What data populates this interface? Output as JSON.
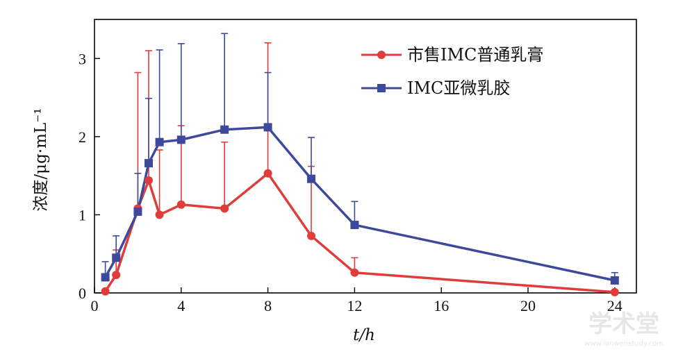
{
  "chart_data": {
    "type": "line",
    "title": "",
    "xlabel": "t/h",
    "ylabel": "浓度/μg·mL⁻¹",
    "xlim": [
      0,
      25
    ],
    "ylim": [
      0,
      3.5
    ],
    "x_ticks": [
      0,
      4,
      8,
      12,
      16,
      20,
      24
    ],
    "y_ticks": [
      0,
      1,
      2,
      3
    ],
    "x_tick_labels": [
      "0",
      "4",
      "8",
      "12",
      "16",
      "20",
      "24"
    ],
    "y_tick_labels": [
      "0",
      "1",
      "2",
      "3"
    ],
    "grid": false,
    "legend_position": "top-right",
    "series": [
      {
        "name": "市售IMC普通乳膏",
        "color": "#e03c3c",
        "marker": "circle",
        "x": [
          0.5,
          1,
          2,
          2.5,
          3,
          4,
          6,
          8,
          10,
          12,
          24
        ],
        "y": [
          0.02,
          0.23,
          1.08,
          1.44,
          1.0,
          1.13,
          1.08,
          1.53,
          0.73,
          0.26,
          0.01
        ],
        "error_upper": [
          0.0,
          0.55,
          2.82,
          3.1,
          1.83,
          2.14,
          1.93,
          3.2,
          1.62,
          0.45,
          0.0
        ]
      },
      {
        "name": "IMC亚微乳胶",
        "color": "#3d4a9c",
        "marker": "square",
        "x": [
          0.5,
          1,
          2,
          2.5,
          3,
          4,
          6,
          8,
          10,
          12,
          24
        ],
        "y": [
          0.2,
          0.45,
          1.04,
          1.66,
          1.93,
          1.96,
          2.09,
          2.12,
          1.46,
          0.87,
          0.16
        ],
        "error_upper": [
          0.4,
          0.73,
          1.53,
          2.49,
          3.11,
          3.19,
          3.32,
          2.82,
          1.99,
          1.17,
          0.26
        ]
      }
    ]
  },
  "watermark": {
    "title": "学术堂",
    "subtitle": "www.lunwenstudy.com"
  }
}
